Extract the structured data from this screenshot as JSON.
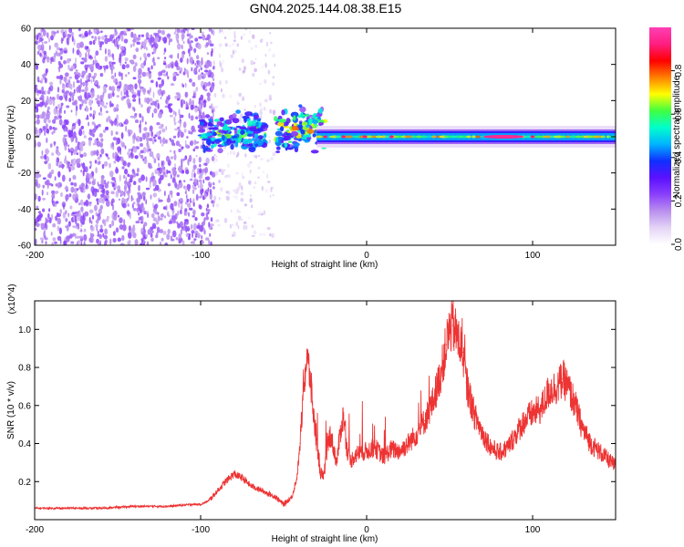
{
  "figure": {
    "title": "GN04.2025.144.08.38.E15"
  },
  "colorbar": {
    "label": "Normalized spectral amplitude",
    "ticks": [
      "0.0",
      "0.2",
      "0.4",
      "0.6",
      "0.8"
    ],
    "colors": [
      "#ffffff",
      "#e4d4f6",
      "#b98fee",
      "#8a3ffb",
      "#5a10ff",
      "#1030ff",
      "#00b4ff",
      "#00ffcc",
      "#40ff40",
      "#ffff00",
      "#ff8000",
      "#ff0000",
      "#ff1e80",
      "#ff3fb4"
    ]
  },
  "chart_data": [
    {
      "type": "heatmap",
      "xlabel": "Height of straight line (km)",
      "ylabel": "Frequency (Hz)",
      "xlim": [
        -200,
        150
      ],
      "ylim": [
        -60,
        60
      ],
      "x_ticks": [
        "-200",
        "-100",
        "0",
        "100"
      ],
      "y_ticks": [
        "60",
        "40",
        "20",
        "0",
        "-20",
        "-40",
        "-60"
      ],
      "regions": [
        {
          "x": [
            -200,
            -92
          ],
          "y": [
            -60,
            60
          ],
          "amplitude": 0.05,
          "pattern": "scattered noise"
        },
        {
          "x": [
            -92,
            -55
          ],
          "y": [
            -55,
            60
          ],
          "amplitude": 0.03,
          "pattern": "sparse noise"
        },
        {
          "x": [
            -100,
            -60
          ],
          "y": [
            -10,
            15
          ],
          "amplitude": 0.35,
          "pattern": "signal onset"
        },
        {
          "x": [
            -55,
            -25
          ],
          "y": [
            -10,
            18
          ],
          "amplitude": 0.4,
          "pattern": "signal onset"
        },
        {
          "x": [
            -30,
            150
          ],
          "y": [
            -2,
            2
          ],
          "amplitude": 0.45,
          "pattern": "narrowband line"
        },
        {
          "x": [
            70,
            95
          ],
          "y": [
            -1,
            1
          ],
          "amplitude": 0.95,
          "pattern": "peak"
        }
      ]
    },
    {
      "type": "line",
      "xlabel": "Height of straight line (km)",
      "ylabel": "SNR (10 * v/v)",
      "y_multiplier": "(x10^4)",
      "xlim": [
        -200,
        150
      ],
      "ylim": [
        0,
        1.15
      ],
      "x_ticks": [
        "-200",
        "-100",
        "0",
        "100"
      ],
      "y_ticks": [
        "0.2",
        "0.4",
        "0.6",
        "0.8",
        "1.0"
      ],
      "series": [
        {
          "color": "#ee3333",
          "x": [
            -200,
            -180,
            -160,
            -140,
            -120,
            -105,
            -100,
            -95,
            -90,
            -85,
            -80,
            -75,
            -70,
            -65,
            -60,
            -55,
            -50,
            -45,
            -42,
            -40,
            -38,
            -36,
            -34,
            -32,
            -30,
            -28,
            -26,
            -24,
            -22,
            -20,
            -18,
            -16,
            -14,
            -12,
            -10,
            -8,
            -5,
            0,
            5,
            10,
            15,
            20,
            25,
            30,
            35,
            40,
            45,
            48,
            50,
            52,
            55,
            58,
            60,
            65,
            70,
            75,
            80,
            85,
            90,
            95,
            100,
            105,
            110,
            115,
            118,
            120,
            125,
            130,
            135,
            140,
            145,
            150
          ],
          "values": [
            0.06,
            0.06,
            0.06,
            0.07,
            0.07,
            0.08,
            0.08,
            0.1,
            0.15,
            0.2,
            0.24,
            0.22,
            0.18,
            0.16,
            0.14,
            0.12,
            0.08,
            0.12,
            0.22,
            0.4,
            0.7,
            0.85,
            0.75,
            0.55,
            0.4,
            0.25,
            0.22,
            0.35,
            0.45,
            0.38,
            0.3,
            0.45,
            0.55,
            0.38,
            0.3,
            0.33,
            0.35,
            0.36,
            0.38,
            0.33,
            0.37,
            0.36,
            0.4,
            0.45,
            0.52,
            0.62,
            0.78,
            0.92,
            1.0,
            1.02,
            0.95,
            0.88,
            0.72,
            0.55,
            0.45,
            0.38,
            0.35,
            0.38,
            0.45,
            0.52,
            0.56,
            0.58,
            0.68,
            0.7,
            0.74,
            0.72,
            0.62,
            0.48,
            0.4,
            0.36,
            0.32,
            0.28
          ]
        }
      ]
    }
  ]
}
